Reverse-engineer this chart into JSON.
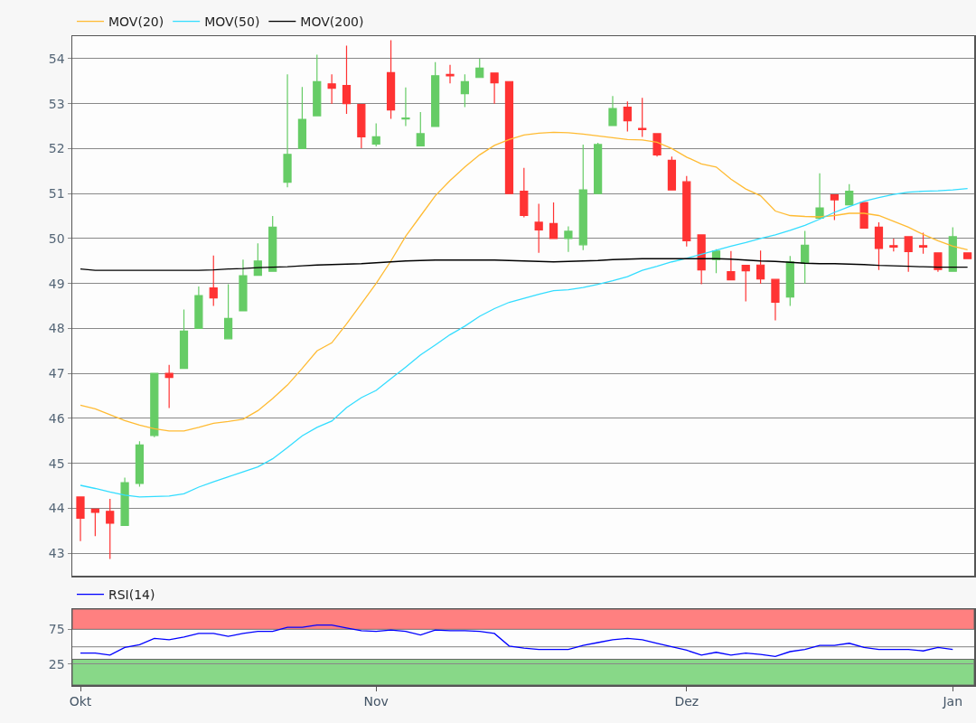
{
  "chart_data": [
    {
      "type": "candlestick",
      "legend": "top left",
      "grid": "y",
      "tick_labels": "y",
      "categories": [
        null,
        null,
        null,
        null,
        null,
        null,
        null,
        null,
        null,
        null,
        null,
        null,
        null,
        null,
        null,
        null,
        null,
        null,
        null,
        null,
        null,
        null,
        null,
        null,
        null,
        null,
        null,
        null,
        null,
        null,
        null,
        null,
        null,
        null,
        null,
        null,
        null,
        null,
        null,
        null,
        null,
        null,
        null,
        null,
        null,
        null,
        null,
        null,
        null,
        null,
        null,
        null,
        null,
        null,
        null,
        null,
        null,
        null,
        null,
        null,
        null
      ],
      "ohlc": [
        [
          44.25,
          44.25,
          43.27,
          43.78
        ],
        [
          43.98,
          43.98,
          43.38,
          43.91
        ],
        [
          43.93,
          44.21,
          42.87,
          43.67
        ],
        [
          43.62,
          44.68,
          43.62,
          44.57
        ],
        [
          44.55,
          45.49,
          44.48,
          45.41
        ],
        [
          45.62,
          47.0,
          45.58,
          47.0
        ],
        [
          47.0,
          47.19,
          46.23,
          46.91
        ],
        [
          47.11,
          48.42,
          47.11,
          47.94
        ],
        [
          48.0,
          48.93,
          48.0,
          48.73
        ],
        [
          48.9,
          49.62,
          48.5,
          48.68
        ],
        [
          47.77,
          48.98,
          47.77,
          48.22
        ],
        [
          48.39,
          49.53,
          48.39,
          49.17
        ],
        [
          49.18,
          49.89,
          49.18,
          49.5
        ],
        [
          49.27,
          50.5,
          49.27,
          50.25
        ],
        [
          51.25,
          53.65,
          51.14,
          51.87
        ],
        [
          52.0,
          53.37,
          52.0,
          52.65
        ],
        [
          52.73,
          54.09,
          52.73,
          53.49
        ],
        [
          53.44,
          53.65,
          52.99,
          53.34
        ],
        [
          53.4,
          54.29,
          52.77,
          53.0
        ],
        [
          52.98,
          52.98,
          52.01,
          52.26
        ],
        [
          52.1,
          52.56,
          52.05,
          52.26
        ],
        [
          53.69,
          54.41,
          52.66,
          52.86
        ],
        [
          52.66,
          53.36,
          52.5,
          52.68
        ],
        [
          52.06,
          52.81,
          52.06,
          52.33
        ],
        [
          52.49,
          53.92,
          52.49,
          53.62
        ],
        [
          53.65,
          53.86,
          53.45,
          53.62
        ],
        [
          53.22,
          53.65,
          52.92,
          53.49
        ],
        [
          53.58,
          54.0,
          53.58,
          53.79
        ],
        [
          53.68,
          53.68,
          53.0,
          53.46
        ],
        [
          53.49,
          53.49,
          51.0,
          51.0
        ],
        [
          51.05,
          51.57,
          50.47,
          50.51
        ],
        [
          50.36,
          50.77,
          49.68,
          50.19
        ],
        [
          50.33,
          50.8,
          49.99,
          50.0
        ],
        [
          50.0,
          50.27,
          49.7,
          50.16
        ],
        [
          49.86,
          52.09,
          49.74,
          51.08
        ],
        [
          51.0,
          52.13,
          51.0,
          52.09
        ],
        [
          52.51,
          53.17,
          52.51,
          52.89
        ],
        [
          52.92,
          53.05,
          52.38,
          52.62
        ],
        [
          52.45,
          53.13,
          52.26,
          52.42
        ],
        [
          52.33,
          52.33,
          51.82,
          51.86
        ],
        [
          51.74,
          51.82,
          51.08,
          51.08
        ],
        [
          51.26,
          51.39,
          49.82,
          49.95
        ],
        [
          50.08,
          50.08,
          48.98,
          49.3
        ],
        [
          49.53,
          49.76,
          49.23,
          49.72
        ],
        [
          49.26,
          49.72,
          49.08,
          49.08
        ],
        [
          49.4,
          49.4,
          48.6,
          49.28
        ],
        [
          49.41,
          49.73,
          48.99,
          49.1
        ],
        [
          49.09,
          49.09,
          48.18,
          48.58
        ],
        [
          48.7,
          49.61,
          48.5,
          49.48
        ],
        [
          49.45,
          50.17,
          48.99,
          49.85
        ],
        [
          50.45,
          51.45,
          50.45,
          50.68
        ],
        [
          50.97,
          50.97,
          50.41,
          50.86
        ],
        [
          50.75,
          51.21,
          50.75,
          51.05
        ],
        [
          50.8,
          50.8,
          50.23,
          50.23
        ],
        [
          50.25,
          50.36,
          49.3,
          49.78
        ],
        [
          49.84,
          50.0,
          49.71,
          49.81
        ],
        [
          50.04,
          50.04,
          49.26,
          49.71
        ],
        [
          49.84,
          50.13,
          49.66,
          49.81
        ],
        [
          49.68,
          49.68,
          49.26,
          49.31
        ],
        [
          49.27,
          50.25,
          49.27,
          50.04
        ],
        [
          49.68,
          49.68,
          49.55,
          49.55
        ]
      ],
      "series": [
        {
          "type": "line",
          "name": "MOV(20)",
          "color": "#ffbb33",
          "values": [
            46.29,
            46.21,
            46.08,
            45.95,
            45.85,
            45.77,
            45.72,
            45.72,
            45.8,
            45.89,
            45.93,
            45.98,
            46.17,
            46.44,
            46.74,
            47.11,
            47.5,
            47.68,
            48.1,
            48.55,
            49.0,
            49.5,
            50.05,
            50.5,
            50.95,
            51.29,
            51.59,
            51.86,
            52.07,
            52.2,
            52.3,
            52.34,
            52.36,
            52.35,
            52.32,
            52.28,
            52.24,
            52.2,
            52.19,
            52.14,
            52.0,
            51.81,
            51.66,
            51.59,
            51.32,
            51.1,
            50.95,
            50.61,
            50.51,
            50.49,
            50.48,
            50.51,
            50.56,
            50.56,
            50.51,
            50.38,
            50.25,
            50.09,
            49.95,
            49.83,
            49.75
          ]
        },
        {
          "type": "line",
          "name": "MOV(50)",
          "color": "#33ddff",
          "values": [
            44.51,
            44.44,
            44.36,
            44.29,
            44.25,
            44.26,
            44.27,
            44.32,
            44.47,
            44.59,
            44.7,
            44.81,
            44.92,
            45.1,
            45.35,
            45.61,
            45.8,
            45.94,
            46.24,
            46.46,
            46.62,
            46.88,
            47.14,
            47.41,
            47.63,
            47.86,
            48.05,
            48.27,
            48.44,
            48.58,
            48.67,
            48.76,
            48.84,
            48.86,
            48.91,
            48.98,
            49.06,
            49.15,
            49.29,
            49.38,
            49.48,
            49.56,
            49.65,
            49.74,
            49.83,
            49.91,
            50.0,
            50.08,
            50.18,
            50.29,
            50.43,
            50.58,
            50.71,
            50.83,
            50.91,
            50.98,
            51.03,
            51.05,
            51.06,
            51.08,
            51.11
          ]
        },
        {
          "type": "line",
          "name": "MOV(200)",
          "color": "#000000",
          "values": [
            49.32,
            49.29,
            49.29,
            49.29,
            49.29,
            49.29,
            49.29,
            49.29,
            49.29,
            49.3,
            49.32,
            49.33,
            49.35,
            49.36,
            49.37,
            49.39,
            49.41,
            49.42,
            49.43,
            49.44,
            49.46,
            49.48,
            49.5,
            49.51,
            49.52,
            49.52,
            49.52,
            49.52,
            49.52,
            49.51,
            49.5,
            49.49,
            49.48,
            49.49,
            49.5,
            49.51,
            49.53,
            49.54,
            49.55,
            49.55,
            49.55,
            49.55,
            49.55,
            49.55,
            49.54,
            49.52,
            49.5,
            49.49,
            49.47,
            49.45,
            49.44,
            49.44,
            49.43,
            49.42,
            49.4,
            49.39,
            49.38,
            49.37,
            49.36,
            49.36,
            49.36
          ]
        }
      ],
      "ylim": [
        42.5,
        54.5
      ],
      "yticks": [
        43,
        44,
        45,
        46,
        47,
        48,
        49,
        50,
        51,
        52,
        53,
        54
      ]
    },
    {
      "type": "line",
      "legend": "top left",
      "grid": "y",
      "categories": [
        "Okt",
        null,
        null,
        null,
        null,
        null,
        null,
        null,
        null,
        null,
        null,
        null,
        null,
        null,
        null,
        null,
        null,
        null,
        null,
        null,
        "Nov",
        null,
        null,
        null,
        null,
        null,
        null,
        null,
        null,
        null,
        null,
        null,
        null,
        null,
        null,
        null,
        null,
        null,
        null,
        null,
        null,
        "Dez",
        null,
        null,
        null,
        null,
        null,
        null,
        null,
        null,
        null,
        null,
        null,
        null,
        null,
        null,
        null,
        null,
        null,
        "Jan",
        null
      ],
      "series": [
        {
          "name": "RSI(14)",
          "color": "#0000ff",
          "values": [
            41,
            41,
            38,
            49,
            53,
            62,
            60,
            64,
            69,
            69,
            65,
            69,
            72,
            72,
            78,
            78,
            81,
            81,
            77,
            73,
            72,
            74,
            72,
            67,
            74,
            73,
            73,
            72,
            69,
            51,
            48,
            46,
            46,
            46,
            52,
            56,
            60,
            62,
            60,
            55,
            50,
            45,
            38,
            42,
            38,
            41,
            39,
            36,
            43,
            46,
            52,
            52,
            55,
            49,
            46,
            46,
            46,
            44,
            49,
            46,
            null
          ]
        }
      ],
      "bands": [
        {
          "axis": "y",
          "from": 75,
          "to": 104,
          "color": "#ff8080"
        },
        {
          "axis": "y",
          "from": -5,
          "to": 32,
          "color": "#88d888"
        }
      ],
      "ref_lines": [
        {
          "axis": "y",
          "value": 50,
          "color": "#999999"
        }
      ],
      "ylim": [
        -5,
        104
      ],
      "yticks": [
        25,
        75
      ]
    }
  ]
}
